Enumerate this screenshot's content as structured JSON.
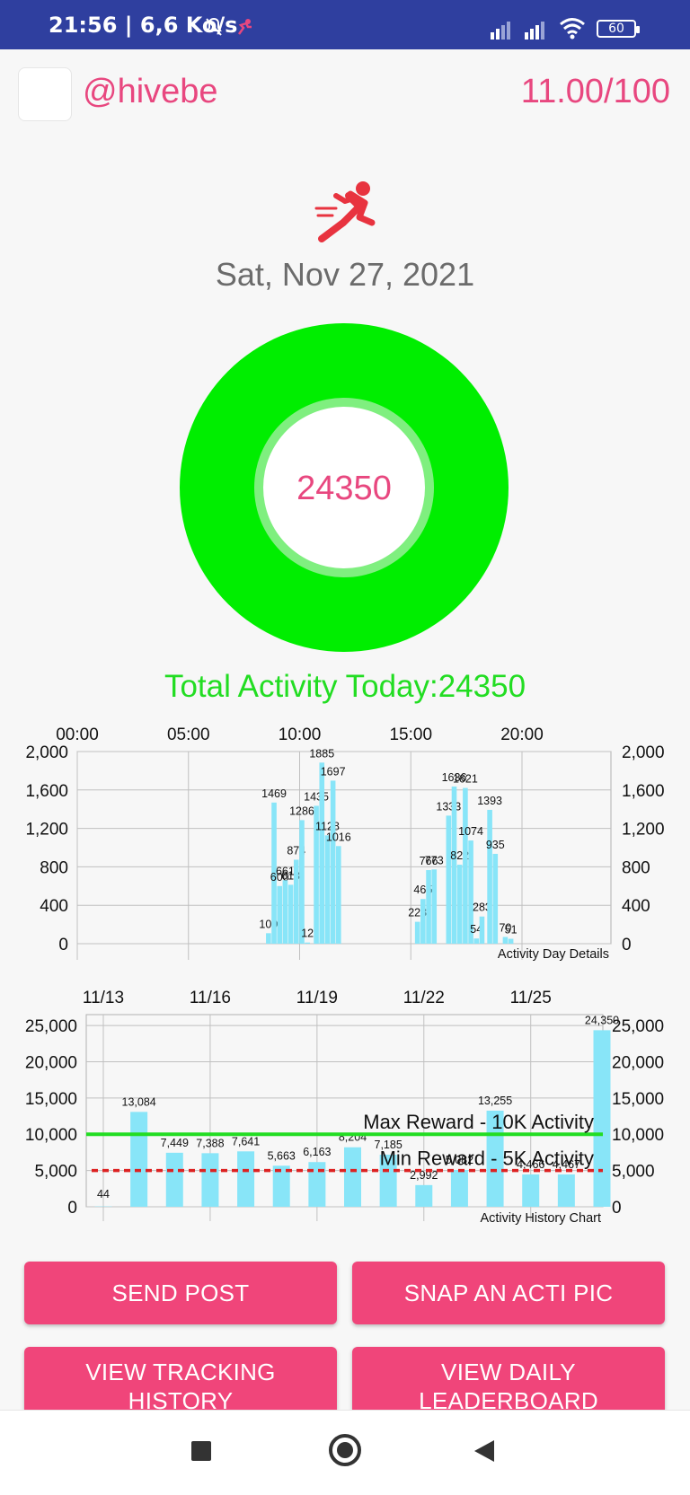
{
  "status_bar": {
    "time": "21:56 | 6,6 Ko/s",
    "battery": "60",
    "icons": [
      "mute-icon",
      "runner-notification-icon",
      "signal-icon",
      "signal-icon",
      "wifi-icon",
      "battery-icon"
    ]
  },
  "header": {
    "username": "@hivebe",
    "score": "11.00/100"
  },
  "date": "Sat, Nov 27, 2021",
  "ring": {
    "value": "24350",
    "ring_color": "#00ee00",
    "text_color": "#e8477f"
  },
  "total_label": "Total Activity Today:24350",
  "chart_data": [
    {
      "type": "bar",
      "caption": "Activity Day Details",
      "x_tick_labels": [
        "00:00",
        "05:00",
        "10:00",
        "15:00",
        "20:00"
      ],
      "ylim": [
        0,
        2000
      ],
      "y_ticks": [
        "0",
        "400",
        "800",
        "1,200",
        "1,600",
        "2,000"
      ],
      "bar_color": "#88e5f8",
      "grid": true,
      "bars": [
        {
          "hour": 8.6,
          "value": 109,
          "label": "109"
        },
        {
          "hour": 8.85,
          "value": 1469,
          "label": "1469"
        },
        {
          "hour": 9.1,
          "value": 600,
          "label": "600"
        },
        {
          "hour": 9.35,
          "value": 661,
          "label": "661"
        },
        {
          "hour": 9.6,
          "value": 613,
          "label": "613"
        },
        {
          "hour": 9.85,
          "value": 874,
          "label": "874"
        },
        {
          "hour": 10.1,
          "value": 1286,
          "label": "1286"
        },
        {
          "hour": 10.35,
          "value": 12,
          "label": "12"
        },
        {
          "hour": 10.75,
          "value": 1435,
          "label": "1435"
        },
        {
          "hour": 11.0,
          "value": 1885,
          "label": "1885"
        },
        {
          "hour": 11.25,
          "value": 1128,
          "label": "1128"
        },
        {
          "hour": 11.5,
          "value": 1697,
          "label": "1697"
        },
        {
          "hour": 11.75,
          "value": 1016,
          "label": "1016"
        },
        {
          "hour": 15.3,
          "value": 228,
          "label": "228"
        },
        {
          "hour": 15.55,
          "value": 465,
          "label": "465"
        },
        {
          "hour": 15.8,
          "value": 766,
          "label": "766"
        },
        {
          "hour": 16.05,
          "value": 773,
          "label": "773"
        },
        {
          "hour": 16.7,
          "value": 1333,
          "label": "1333"
        },
        {
          "hour": 16.95,
          "value": 1636,
          "label": "1636"
        },
        {
          "hour": 17.2,
          "value": 822,
          "label": "822"
        },
        {
          "hour": 17.45,
          "value": 1621,
          "label": "1621"
        },
        {
          "hour": 17.7,
          "value": 1074,
          "label": "1074"
        },
        {
          "hour": 17.95,
          "value": 54,
          "label": "54"
        },
        {
          "hour": 18.2,
          "value": 283,
          "label": "283"
        },
        {
          "hour": 18.55,
          "value": 1393,
          "label": "1393"
        },
        {
          "hour": 18.8,
          "value": 935,
          "label": "935"
        },
        {
          "hour": 19.25,
          "value": 70,
          "label": "70"
        },
        {
          "hour": 19.5,
          "value": 51,
          "label": "51"
        }
      ]
    },
    {
      "type": "bar",
      "caption": "Activity History Chart",
      "x_tick_labels": [
        "11/13",
        "11/16",
        "11/19",
        "11/22",
        "11/25"
      ],
      "ylim": [
        0,
        26500
      ],
      "y_ticks": [
        "0",
        "5,000",
        "10,000",
        "15,000",
        "20,000",
        "25,000"
      ],
      "bar_color": "#88e5f8",
      "grid": true,
      "categories": [
        "11/13",
        "11/14",
        "11/15",
        "11/16",
        "11/17",
        "11/18",
        "11/19",
        "11/20",
        "11/21",
        "11/22",
        "11/23",
        "11/24",
        "11/25",
        "11/26",
        "11/27"
      ],
      "values": [
        44,
        13084,
        7449,
        7388,
        7641,
        5663,
        6163,
        8204,
        7185,
        2992,
        5082,
        13255,
        4466,
        4467,
        24350
      ],
      "value_labels": [
        "44",
        "13,084",
        "7,449",
        "7,388",
        "7,641",
        "5,663",
        "6,163",
        "8,204",
        "7,185",
        "2,992",
        "5,082",
        "13,255",
        "4,466",
        "4,467",
        "24,350"
      ],
      "reference_lines": [
        {
          "value": 10000,
          "label": "Max Reward - 10K Activity",
          "color": "#22dd22",
          "style": "solid"
        },
        {
          "value": 5000,
          "label": "Min Reward - 5K Activity",
          "color": "#dd2222",
          "style": "dashed"
        }
      ]
    }
  ],
  "buttons": {
    "send_post": "SEND POST",
    "snap_pic": "SNAP AN ACTI PIC",
    "view_tracking_line1": "VIEW TRACKING",
    "view_tracking_line2": "HISTORY",
    "view_leaderboard_line1": "VIEW DAILY",
    "view_leaderboard_line2": "LEADERBOARD",
    "color": "#f0457a"
  },
  "nav": {
    "icons": [
      "recents-square-icon",
      "home-circle-icon",
      "back-triangle-icon"
    ]
  }
}
